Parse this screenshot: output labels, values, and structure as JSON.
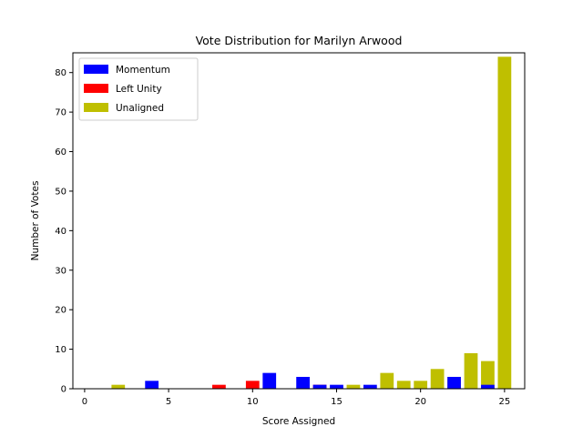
{
  "chart_data": {
    "type": "bar",
    "stacked": true,
    "title": "Vote Distribution for Marilyn Arwood",
    "xlabel": "Score Assigned",
    "ylabel": "Number of Votes",
    "xlim": [
      -0.7,
      26.2
    ],
    "ylim": [
      0,
      85
    ],
    "x_ticks": [
      0,
      5,
      10,
      15,
      20,
      25
    ],
    "y_ticks": [
      0,
      10,
      20,
      30,
      40,
      50,
      60,
      70,
      80
    ],
    "x": [
      2,
      4,
      8,
      10,
      11,
      13,
      14,
      15,
      16,
      17,
      18,
      19,
      20,
      21,
      22,
      23,
      24,
      25
    ],
    "series": [
      {
        "name": "Momentum",
        "color": "#0000ff",
        "values": [
          0,
          2,
          0,
          0,
          4,
          3,
          1,
          1,
          0,
          1,
          0,
          0,
          0,
          0,
          3,
          0,
          1,
          0
        ]
      },
      {
        "name": "Left Unity",
        "color": "#ff0000",
        "values": [
          0,
          0,
          1,
          2,
          0,
          0,
          1,
          0,
          0,
          0,
          0,
          0,
          0,
          0,
          0,
          0,
          0,
          0
        ]
      },
      {
        "name": "Unaligned",
        "color": "#bfbf00",
        "values": [
          1,
          0,
          0,
          0,
          0,
          0,
          0,
          0,
          1,
          0,
          4,
          2,
          2,
          5,
          3,
          9,
          7,
          84
        ]
      }
    ],
    "stack_draw_order": [
      "Unaligned",
      "Left Unity",
      "Momentum"
    ],
    "legend_position": "upper left",
    "grid": false
  }
}
